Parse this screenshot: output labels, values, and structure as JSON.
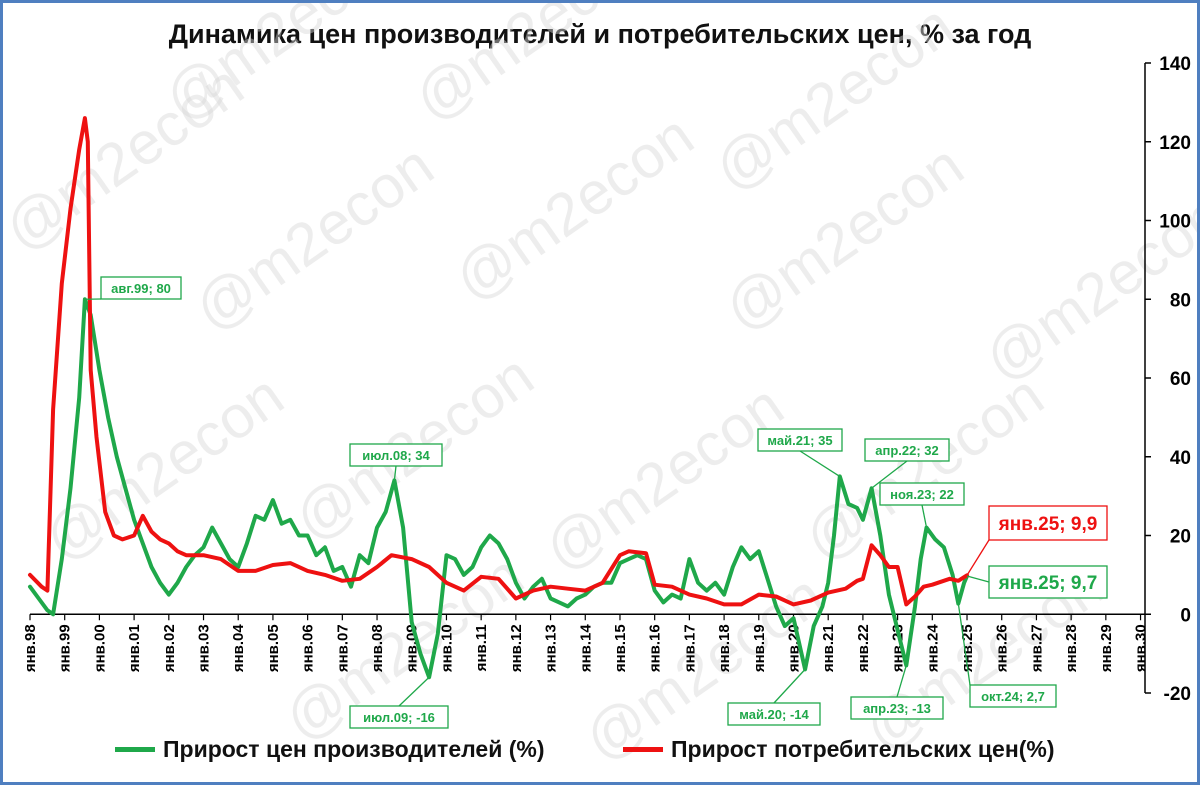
{
  "chart_data": {
    "type": "line",
    "title": "Динамика цен производителей и потребительских цен, % за год",
    "ylim": [
      -20,
      140
    ],
    "yticks": [
      -20,
      0,
      20,
      40,
      60,
      80,
      100,
      120,
      140
    ],
    "y_axis_side": "right",
    "x_start_year": 1998,
    "x_end_year": 2030,
    "xtick_labels": [
      "янв.98",
      "янв.99",
      "янв.00",
      "янв.01",
      "янв.02",
      "янв.03",
      "янв.04",
      "янв.05",
      "янв.06",
      "янв.07",
      "янв.08",
      "янв.09",
      "янв.10",
      "янв.11",
      "янв.12",
      "янв.13",
      "янв.14",
      "янв.15",
      "янв.16",
      "янв.17",
      "янв.18",
      "янв.19",
      "янв.20",
      "янв.21",
      "янв.22",
      "янв.23",
      "янв.24",
      "янв.25",
      "янв.26",
      "янв.27",
      "янв.28",
      "янв.29",
      "янв.30"
    ],
    "grid": false,
    "legend_position": "bottom",
    "series": [
      {
        "name": "Прирост цен производителей (%)",
        "color": "#1fa84a",
        "points": [
          [
            "1998-01",
            7
          ],
          [
            "1998-04",
            4
          ],
          [
            "1998-07",
            1
          ],
          [
            "1998-09",
            0
          ],
          [
            "1998-12",
            14
          ],
          [
            "1999-03",
            32
          ],
          [
            "1999-06",
            55
          ],
          [
            "1999-08",
            80
          ],
          [
            "1999-10",
            76
          ],
          [
            "2000-01",
            62
          ],
          [
            "2000-04",
            50
          ],
          [
            "2000-07",
            40
          ],
          [
            "2000-10",
            32
          ],
          [
            "2001-01",
            24
          ],
          [
            "2001-04",
            18
          ],
          [
            "2001-07",
            12
          ],
          [
            "2001-10",
            8
          ],
          [
            "2002-01",
            5
          ],
          [
            "2002-04",
            8
          ],
          [
            "2002-07",
            12
          ],
          [
            "2002-10",
            15
          ],
          [
            "2003-01",
            17
          ],
          [
            "2003-04",
            22
          ],
          [
            "2003-07",
            18
          ],
          [
            "2003-10",
            14
          ],
          [
            "2004-01",
            12
          ],
          [
            "2004-04",
            18
          ],
          [
            "2004-07",
            25
          ],
          [
            "2004-10",
            24
          ],
          [
            "2005-01",
            29
          ],
          [
            "2005-04",
            23
          ],
          [
            "2005-07",
            24
          ],
          [
            "2005-10",
            20
          ],
          [
            "2006-01",
            20
          ],
          [
            "2006-04",
            15
          ],
          [
            "2006-07",
            17
          ],
          [
            "2006-10",
            11
          ],
          [
            "2007-01",
            12
          ],
          [
            "2007-04",
            7
          ],
          [
            "2007-07",
            15
          ],
          [
            "2007-10",
            13
          ],
          [
            "2008-01",
            22
          ],
          [
            "2008-04",
            26
          ],
          [
            "2008-07",
            34
          ],
          [
            "2008-10",
            22
          ],
          [
            "2009-01",
            -2
          ],
          [
            "2009-04",
            -10
          ],
          [
            "2009-07",
            -16
          ],
          [
            "2009-10",
            -5
          ],
          [
            "2010-01",
            15
          ],
          [
            "2010-04",
            14
          ],
          [
            "2010-07",
            10
          ],
          [
            "2010-10",
            12
          ],
          [
            "2011-01",
            17
          ],
          [
            "2011-04",
            20
          ],
          [
            "2011-07",
            18
          ],
          [
            "2011-10",
            14
          ],
          [
            "2012-01",
            8
          ],
          [
            "2012-04",
            4
          ],
          [
            "2012-07",
            7
          ],
          [
            "2012-10",
            9
          ],
          [
            "2013-01",
            4
          ],
          [
            "2013-04",
            3
          ],
          [
            "2013-07",
            2
          ],
          [
            "2013-10",
            4
          ],
          [
            "2014-01",
            5
          ],
          [
            "2014-04",
            7
          ],
          [
            "2014-07",
            8
          ],
          [
            "2014-10",
            8
          ],
          [
            "2015-01",
            13
          ],
          [
            "2015-04",
            14
          ],
          [
            "2015-07",
            15
          ],
          [
            "2015-10",
            14
          ],
          [
            "2016-01",
            6
          ],
          [
            "2016-04",
            3
          ],
          [
            "2016-07",
            5
          ],
          [
            "2016-10",
            4
          ],
          [
            "2017-01",
            14
          ],
          [
            "2017-04",
            8
          ],
          [
            "2017-07",
            6
          ],
          [
            "2017-10",
            8
          ],
          [
            "2018-01",
            5
          ],
          [
            "2018-04",
            12
          ],
          [
            "2018-07",
            17
          ],
          [
            "2018-10",
            14
          ],
          [
            "2019-01",
            16
          ],
          [
            "2019-04",
            9
          ],
          [
            "2019-07",
            2
          ],
          [
            "2019-10",
            -3
          ],
          [
            "2020-01",
            -1
          ],
          [
            "2020-05",
            -14
          ],
          [
            "2020-08",
            -3
          ],
          [
            "2020-11",
            2
          ],
          [
            "2021-01",
            8
          ],
          [
            "2021-03",
            20
          ],
          [
            "2021-05",
            35
          ],
          [
            "2021-08",
            28
          ],
          [
            "2021-11",
            27
          ],
          [
            "2022-01",
            24
          ],
          [
            "2022-04",
            32
          ],
          [
            "2022-07",
            20
          ],
          [
            "2022-10",
            5
          ],
          [
            "2023-01",
            -4
          ],
          [
            "2023-04",
            -13
          ],
          [
            "2023-07",
            2
          ],
          [
            "2023-09",
            14
          ],
          [
            "2023-11",
            22
          ],
          [
            "2024-02",
            19
          ],
          [
            "2024-05",
            17
          ],
          [
            "2024-08",
            10
          ],
          [
            "2024-10",
            2.7
          ],
          [
            "2024-12",
            8
          ],
          [
            "2025-01",
            9.7
          ]
        ]
      },
      {
        "name": "Прирост потребительских цен(%)",
        "color": "#ee1111",
        "points": [
          [
            "1998-01",
            10
          ],
          [
            "1998-05",
            7
          ],
          [
            "1998-07",
            6
          ],
          [
            "1998-09",
            52
          ],
          [
            "1998-12",
            84
          ],
          [
            "1999-03",
            103
          ],
          [
            "1999-06",
            118
          ],
          [
            "1999-08",
            126
          ],
          [
            "1999-09",
            120
          ],
          [
            "1999-10",
            62
          ],
          [
            "1999-12",
            45
          ],
          [
            "2000-03",
            26
          ],
          [
            "2000-06",
            20
          ],
          [
            "2000-09",
            19
          ],
          [
            "2001-01",
            20
          ],
          [
            "2001-04",
            25
          ],
          [
            "2001-07",
            21
          ],
          [
            "2001-10",
            19
          ],
          [
            "2002-01",
            18
          ],
          [
            "2002-04",
            16
          ],
          [
            "2002-07",
            15
          ],
          [
            "2002-10",
            15
          ],
          [
            "2003-01",
            15
          ],
          [
            "2003-07",
            14
          ],
          [
            "2004-01",
            11
          ],
          [
            "2004-07",
            11
          ],
          [
            "2005-01",
            12.5
          ],
          [
            "2005-07",
            13
          ],
          [
            "2006-01",
            11
          ],
          [
            "2006-07",
            10
          ],
          [
            "2007-01",
            8.5
          ],
          [
            "2007-07",
            9
          ],
          [
            "2008-01",
            12
          ],
          [
            "2008-06",
            15
          ],
          [
            "2009-01",
            14
          ],
          [
            "2009-07",
            12
          ],
          [
            "2010-01",
            8
          ],
          [
            "2010-07",
            6
          ],
          [
            "2011-01",
            9.5
          ],
          [
            "2011-07",
            9
          ],
          [
            "2012-01",
            4
          ],
          [
            "2012-07",
            6
          ],
          [
            "2013-01",
            7
          ],
          [
            "2013-07",
            6.5
          ],
          [
            "2014-01",
            6
          ],
          [
            "2014-07",
            8
          ],
          [
            "2015-01",
            15
          ],
          [
            "2015-04",
            16
          ],
          [
            "2015-10",
            15.5
          ],
          [
            "2016-01",
            7.5
          ],
          [
            "2016-07",
            7
          ],
          [
            "2017-01",
            5
          ],
          [
            "2017-07",
            4
          ],
          [
            "2018-01",
            2.5
          ],
          [
            "2018-07",
            2.5
          ],
          [
            "2019-01",
            5
          ],
          [
            "2019-07",
            4.5
          ],
          [
            "2020-01",
            2.5
          ],
          [
            "2020-07",
            3.5
          ],
          [
            "2021-01",
            5.5
          ],
          [
            "2021-07",
            6.5
          ],
          [
            "2021-11",
            8.5
          ],
          [
            "2022-01",
            9
          ],
          [
            "2022-04",
            17.5
          ],
          [
            "2022-07",
            15
          ],
          [
            "2022-10",
            12
          ],
          [
            "2023-01",
            12
          ],
          [
            "2023-04",
            2.5
          ],
          [
            "2023-07",
            4.5
          ],
          [
            "2023-10",
            7
          ],
          [
            "2024-01",
            7.5
          ],
          [
            "2024-07",
            9
          ],
          [
            "2024-10",
            8.5
          ],
          [
            "2025-01",
            9.9
          ]
        ]
      }
    ],
    "annotations": [
      {
        "label": "авг.99; 80",
        "date": "1999-08",
        "value": 80,
        "series": 0,
        "size": "small"
      },
      {
        "label": "июл.08; 34",
        "date": "2008-07",
        "value": 34,
        "series": 0,
        "size": "small"
      },
      {
        "label": "июл.09; -16",
        "date": "2009-07",
        "value": -16,
        "series": 0,
        "size": "small"
      },
      {
        "label": "май.20; -14",
        "date": "2020-05",
        "value": -14,
        "series": 0,
        "size": "small"
      },
      {
        "label": "май.21; 35",
        "date": "2021-05",
        "value": 35,
        "series": 0,
        "size": "small"
      },
      {
        "label": "апр.22; 32",
        "date": "2022-04",
        "value": 32,
        "series": 0,
        "size": "small"
      },
      {
        "label": "апр.23; -13",
        "date": "2023-04",
        "value": -13,
        "series": 0,
        "size": "small"
      },
      {
        "label": "ноя.23; 22",
        "date": "2023-11",
        "value": 22,
        "series": 0,
        "size": "small"
      },
      {
        "label": "окт.24; 2,7",
        "date": "2024-10",
        "value": 2.7,
        "series": 0,
        "size": "small"
      },
      {
        "label": "янв.25; 9,9",
        "date": "2025-01",
        "value": 9.9,
        "series": 1,
        "size": "big"
      },
      {
        "label": "янв.25; 9,7",
        "date": "2025-01",
        "value": 9.7,
        "series": 0,
        "size": "big"
      }
    ],
    "watermark": "@m2econ"
  }
}
